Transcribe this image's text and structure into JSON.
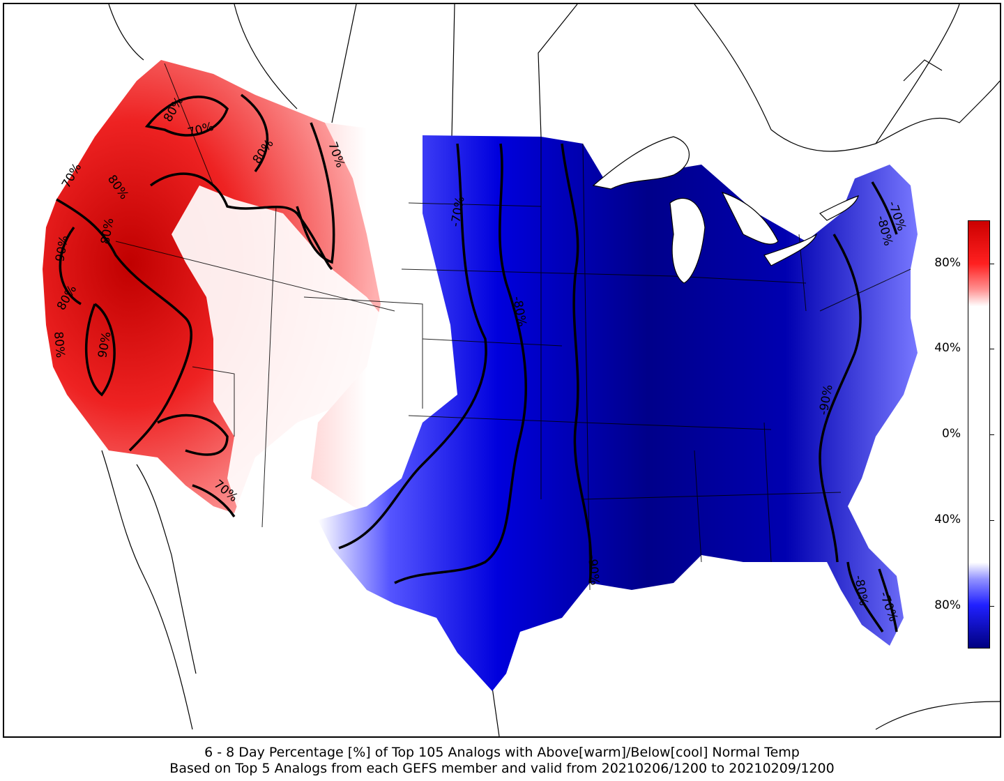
{
  "caption": {
    "line1": "6 - 8 Day Percentage [%] of Top 105 Analogs with Above[warm]/Below[cool] Normal Temp",
    "line2": "Based on Top 5 Analogs from each GEFS member and valid from 20210206/1200 to 20210209/1200"
  },
  "colorbar": {
    "ticks": [
      {
        "label": "80%",
        "value": 80,
        "sign": "warm"
      },
      {
        "label": "40%",
        "value": 40,
        "sign": "warm"
      },
      {
        "label": "0%",
        "value": 0,
        "sign": "neutral"
      },
      {
        "label": "40%",
        "value": 40,
        "sign": "cool"
      },
      {
        "label": "80%",
        "value": 80,
        "sign": "cool"
      }
    ],
    "warm_color": "#cc0000",
    "cool_color": "#000080",
    "neutral_color": "#ffffff"
  },
  "contour_labels": [
    {
      "text": "80%",
      "region": "northern-idaho"
    },
    {
      "text": "70%",
      "region": "western-montana"
    },
    {
      "text": "80%",
      "region": "central-montana"
    },
    {
      "text": "70%",
      "region": "eastern-montana"
    },
    {
      "text": "70%",
      "region": "washington-coast"
    },
    {
      "text": "80%",
      "region": "oregon"
    },
    {
      "text": "80%",
      "region": "oregon-interior"
    },
    {
      "text": "90%",
      "region": "northern-california"
    },
    {
      "text": "80%",
      "region": "california-coast"
    },
    {
      "text": "80%",
      "region": "california-coast-south"
    },
    {
      "text": "90%",
      "region": "central-california"
    },
    {
      "text": "70%",
      "region": "arizona"
    },
    {
      "text": "-70%",
      "region": "dakotas"
    },
    {
      "text": "-80%",
      "region": "nebraska-kansas"
    },
    {
      "text": "-90%",
      "region": "carolinas"
    },
    {
      "text": "-90%",
      "region": "louisiana"
    },
    {
      "text": "-70%",
      "region": "new-england"
    },
    {
      "text": "-80%",
      "region": "new-york"
    },
    {
      "text": "-80%",
      "region": "florida-west"
    },
    {
      "text": "-70%",
      "region": "florida-east"
    }
  ]
}
